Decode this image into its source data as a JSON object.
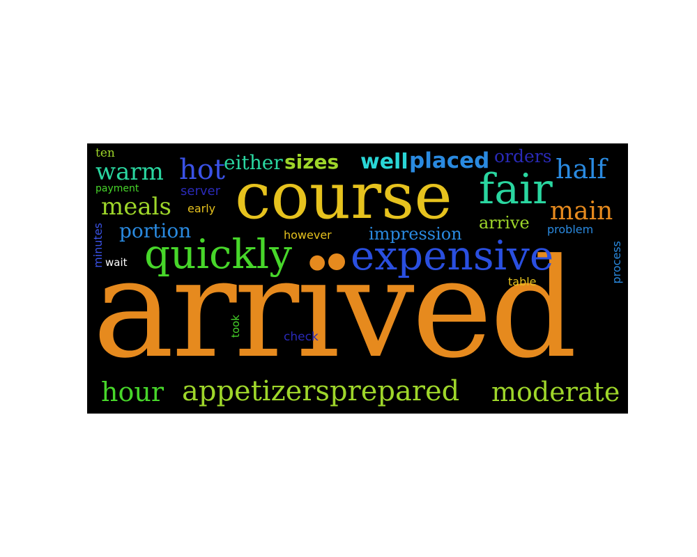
{
  "words": {
    "arrived": "arrived",
    "course": "course",
    "expensive": "expensive",
    "quickly": "quickly",
    "fair": "fair",
    "appetizersprepared": "appetizersprepared",
    "moderate": "moderate",
    "hour": "hour",
    "main": "main",
    "half": "half",
    "hot": "hot",
    "warm": "warm",
    "meals": "meals",
    "portion": "portion",
    "either": "either",
    "sizes": "sizes",
    "well": "well",
    "placed": "placed",
    "orders": "orders",
    "ten": "ten",
    "payment": "payment",
    "server": "server",
    "early": "early",
    "however": "however",
    "impression": "impression",
    "arrive": "arrive",
    "problem": "problem",
    "minutes": "minutes",
    "wait": "wait",
    "table": "table",
    "process": "process",
    "took": "took",
    "check": "check"
  },
  "colors": {
    "background": "#000000",
    "orange": "#e68a1e",
    "gold": "#e6c21e",
    "green": "#47d62a",
    "lime": "#9ed62a",
    "teal": "#2ad6a0",
    "cyan": "#2ad6d6",
    "blue": "#2a4fe0",
    "royal": "#3a52e6",
    "navy": "#2a2ab8",
    "sky": "#2a8ae0"
  }
}
